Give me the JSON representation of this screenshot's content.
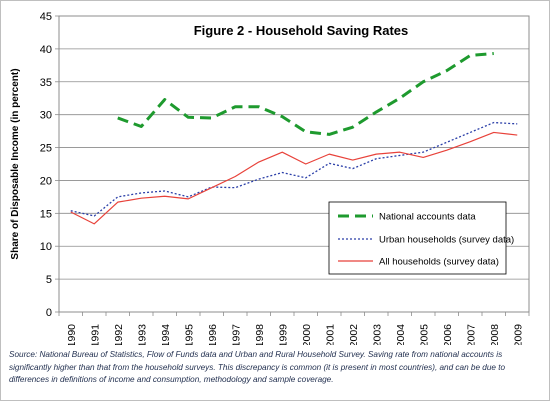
{
  "chart_data": {
    "type": "line",
    "title": "Figure 2 - Household Saving Rates",
    "ylabel": "Share of Disposable Income (in percent)",
    "xlabel": "",
    "ylim": [
      0,
      45
    ],
    "yticks": [
      0,
      5,
      10,
      15,
      20,
      25,
      30,
      35,
      40,
      45
    ],
    "x": [
      "1990",
      "1991",
      "1992",
      "1993",
      "1994",
      "1995",
      "1996",
      "1997",
      "1998",
      "1999",
      "2000",
      "2001",
      "2002",
      "2003",
      "2004",
      "2005",
      "2006",
      "2007",
      "2008",
      "2009"
    ],
    "grid": "horizontal",
    "legend_position": "lower-right, inside plot",
    "series": [
      {
        "name": "National accounts data",
        "color": "#1e9a2e",
        "style": "dashed",
        "values": [
          null,
          null,
          29.5,
          28.2,
          32.3,
          29.6,
          29.5,
          31.2,
          31.2,
          29.7,
          27.4,
          27.0,
          28.1,
          30.4,
          32.5,
          35.0,
          36.7,
          39.0,
          39.3,
          null
        ]
      },
      {
        "name": "Urban households (survey data)",
        "color": "#2b3fa8",
        "style": "dotted",
        "values": [
          15.4,
          14.6,
          17.5,
          18.1,
          18.4,
          17.5,
          19.0,
          18.9,
          20.2,
          21.2,
          20.4,
          22.6,
          21.8,
          23.3,
          23.8,
          24.3,
          25.8,
          27.3,
          28.8,
          28.6
        ]
      },
      {
        "name": "All households (survey data)",
        "color": "#e8423a",
        "style": "solid",
        "values": [
          15.2,
          13.4,
          16.7,
          17.3,
          17.6,
          17.2,
          18.9,
          20.6,
          22.8,
          24.3,
          22.5,
          24.0,
          23.1,
          24.0,
          24.3,
          23.5,
          24.6,
          25.9,
          27.3,
          26.9
        ]
      }
    ]
  },
  "source_note": "Source: National Bureau of Statistics, Flow of Funds data and Urban and Rural Household Survey. Saving rate from national accounts is significantly higher than that from the household surveys. This discrepancy is common (it is present in most countries), and can be due to differences in definitions of income and consumption, methodology and sample coverage."
}
